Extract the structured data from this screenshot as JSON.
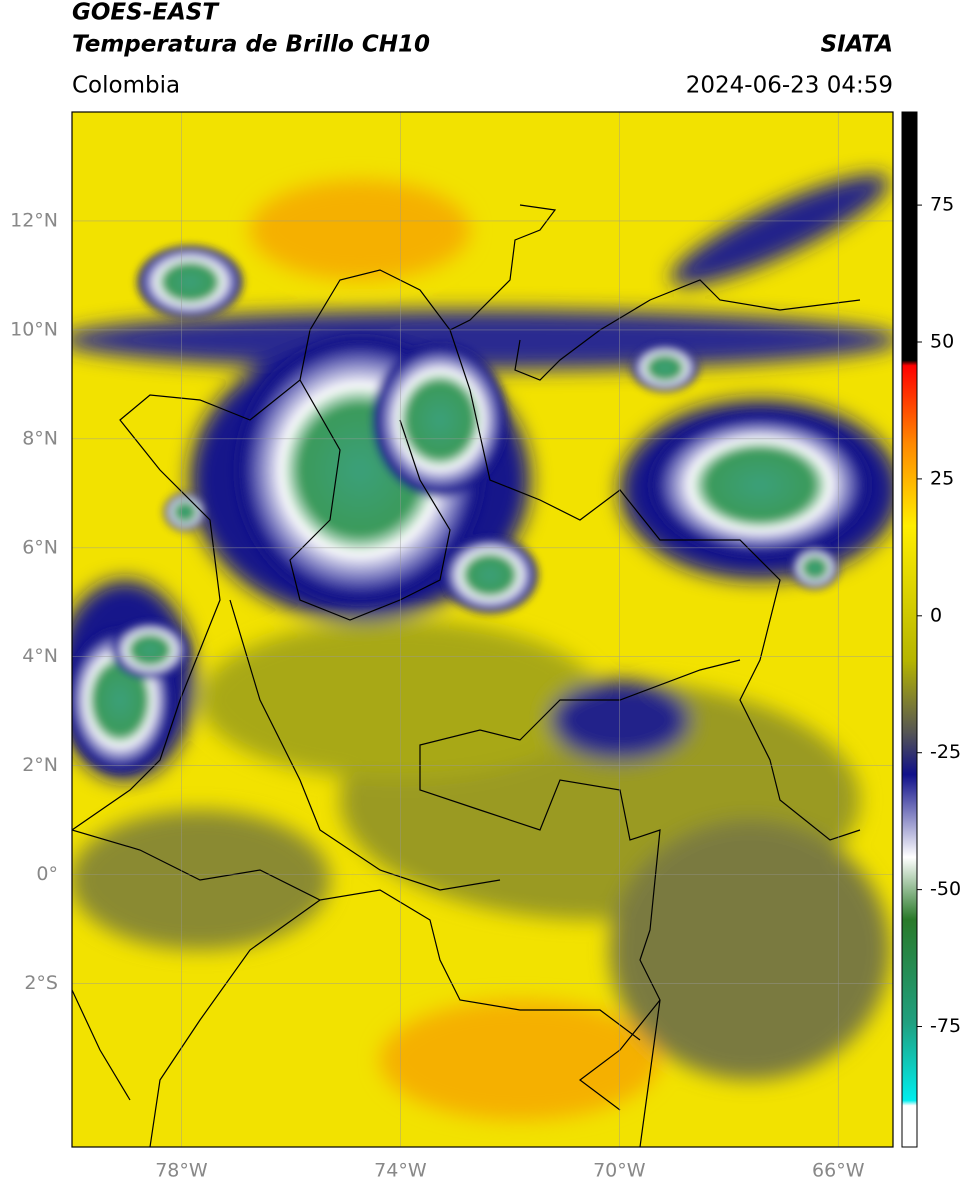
{
  "header": {
    "title": "GOES-EAST",
    "subtitle": "Temperatura de Brillo CH10",
    "source": "SIATA",
    "region": "Colombia",
    "timestamp": "2024-06-23 04:59"
  },
  "map": {
    "lon_range": [
      -80,
      -65
    ],
    "lat_range": [
      -5,
      14
    ],
    "lon_ticks": [
      {
        "value": -78,
        "label": "78°W"
      },
      {
        "value": -74,
        "label": "74°W"
      },
      {
        "value": -70,
        "label": "70°W"
      },
      {
        "value": -66,
        "label": "66°W"
      }
    ],
    "lat_ticks": [
      {
        "value": 12,
        "label": "12°N"
      },
      {
        "value": 10,
        "label": "10°N"
      },
      {
        "value": 8,
        "label": "8°N"
      },
      {
        "value": 6,
        "label": "6°N"
      },
      {
        "value": 4,
        "label": "4°N"
      },
      {
        "value": 2,
        "label": "2°N"
      },
      {
        "value": 0,
        "label": "0°"
      },
      {
        "value": -2,
        "label": "2°S"
      }
    ]
  },
  "colorbar": {
    "range": [
      -97,
      92
    ],
    "ticks": [
      75,
      50,
      25,
      0,
      -25,
      -50,
      -75
    ]
  }
}
